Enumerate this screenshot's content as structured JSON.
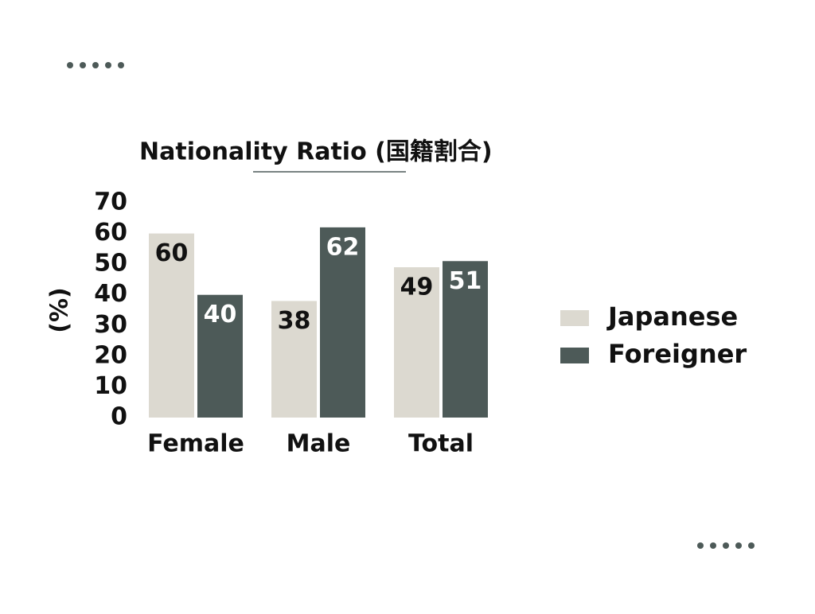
{
  "chart_data": {
    "type": "bar",
    "title": "Nationality Ratio (国籍割合)",
    "y_label": "(%)",
    "categories": [
      "Female",
      "Male",
      "Total"
    ],
    "series": [
      {
        "name": "Japanese",
        "color": "#dcd9d0",
        "values": [
          60,
          38,
          49
        ]
      },
      {
        "name": "Foreigner",
        "color": "#4d5a58",
        "values": [
          40,
          62,
          51
        ]
      }
    ],
    "ylim": [
      0,
      70
    ],
    "yticks": [
      0,
      10,
      20,
      30,
      40,
      50,
      60,
      70
    ],
    "grid": false,
    "legend": "right"
  }
}
